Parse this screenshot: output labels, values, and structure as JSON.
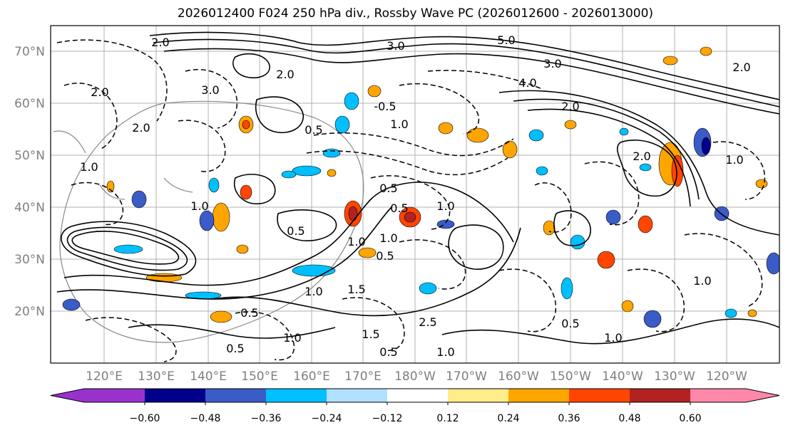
{
  "title": "2026012400 F024 250 hPa div., Rossby Wave PC (2026012600 - 2026013000)",
  "lat_labels": [
    "70°N",
    "60°N",
    "50°N",
    "40°N",
    "30°N",
    "20°N"
  ],
  "lon_labels": [
    "120°E",
    "130°E",
    "140°E",
    "150°E",
    "160°E",
    "170°E",
    "180°W",
    "170°W",
    "160°W",
    "150°W",
    "140°W",
    "130°W",
    "120°W"
  ],
  "colorbar": {
    "ticks": [
      "−0.60",
      "−0.48",
      "−0.36",
      "−0.24",
      "−0.12",
      "0.12",
      "0.24",
      "0.36",
      "0.48",
      "0.60"
    ],
    "colors": [
      "#9932cc",
      "#00008b",
      "#3a5cc8",
      "#00bfff",
      "#b0e0ff",
      "#ffffff",
      "#ffec8b",
      "#ffa500",
      "#ff4500",
      "#b22222",
      "#ff88aa"
    ]
  },
  "contour_labels": [
    "2.0",
    "3.0",
    "5.0",
    "3.0",
    "4.0",
    "2.0",
    "2.0",
    "3.0",
    "-0.5",
    "1.0",
    "0.5",
    "1.0",
    "2.0",
    "1.0",
    "0.5",
    "1.0",
    "2.0",
    "0.5",
    "1.5",
    "1.0",
    "0.5",
    "1.0",
    "0.5",
    "0.5",
    "1.0",
    "0.5",
    "1.0",
    "1.5",
    "1.0",
    "2.0",
    "1.0",
    "0.5",
    "2.5",
    "1.0",
    "0.5",
    "1.0",
    "2.0"
  ]
}
